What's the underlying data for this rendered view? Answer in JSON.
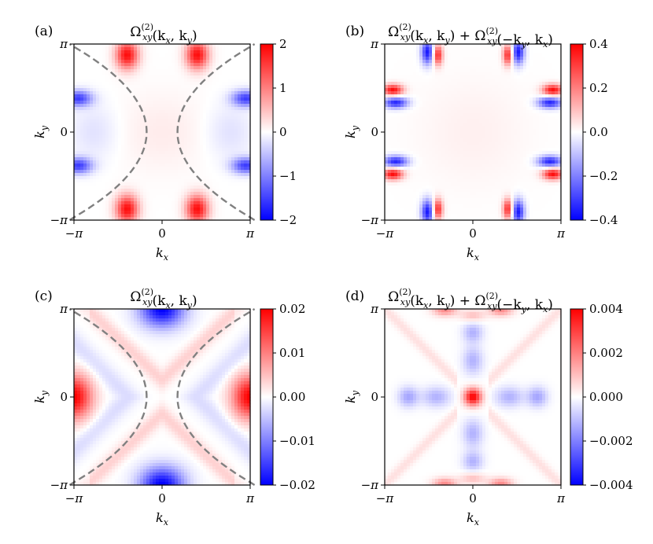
{
  "chart_data": [
    {
      "type": "heatmap",
      "panel_tag": "(a)",
      "title": "Ω_xy^(2)(k_x, k_y)",
      "title_parts": {
        "symbol": "Ω",
        "sup": "(2)",
        "sub": "xy",
        "args": "(k",
        "args_x": "x",
        "args_mid": ", k",
        "args_y": "y",
        "args_end": ")"
      },
      "xlabel": "k",
      "xlabel_sub": "x",
      "ylabel": "k",
      "ylabel_sub": "y",
      "xticks": [
        "−π",
        "0",
        "π"
      ],
      "yticks": [
        "π",
        "0",
        "−π"
      ],
      "xlim": [
        -3.14159,
        3.14159
      ],
      "ylim": [
        -3.14159,
        3.14159
      ],
      "colorbar": {
        "range": [
          -2,
          2
        ],
        "ticks": [
          2,
          1,
          0,
          -1,
          -2
        ],
        "tick_labels": [
          "2",
          "1",
          "0",
          "−1",
          "−2"
        ]
      },
      "dashed_contour": true,
      "pattern": "a"
    },
    {
      "type": "heatmap",
      "panel_tag": "(b)",
      "title": "Ω_xy^(2)(k_x, k_y) + Ω_xy^(2)(−k_y, k_x)",
      "title_parts": {
        "symbol": "Ω",
        "sup": "(2)",
        "sub": "xy",
        "args": "(k",
        "args_x": "x",
        "args_mid": ", k",
        "args_y": "y",
        "args_end": ")",
        "plus": " + ",
        "args2": "(−k",
        "args2_y": "y",
        "args2_mid": ", k",
        "args2_x": "x",
        "args2_end": ")"
      },
      "xlabel": "k",
      "xlabel_sub": "x",
      "ylabel": "k",
      "ylabel_sub": "y",
      "xticks": [
        "−π",
        "0",
        "π"
      ],
      "yticks": [
        "π",
        "0",
        "−π"
      ],
      "xlim": [
        -3.14159,
        3.14159
      ],
      "ylim": [
        -3.14159,
        3.14159
      ],
      "colorbar": {
        "range": [
          -0.4,
          0.4
        ],
        "ticks": [
          0.4,
          0.2,
          0.0,
          -0.2,
          -0.4
        ],
        "tick_labels": [
          "0.4",
          "0.2",
          "0.0",
          "−0.2",
          "−0.4"
        ]
      },
      "dashed_contour": false,
      "pattern": "b"
    },
    {
      "type": "heatmap",
      "panel_tag": "(c)",
      "title": "Ω_xy^(2)(k_x, k_y)",
      "title_parts": {
        "symbol": "Ω",
        "sup": "(2)",
        "sub": "xy",
        "args": "(k",
        "args_x": "x",
        "args_mid": ", k",
        "args_y": "y",
        "args_end": ")"
      },
      "xlabel": "k",
      "xlabel_sub": "x",
      "ylabel": "k",
      "ylabel_sub": "y",
      "xticks": [
        "−π",
        "0",
        "π"
      ],
      "yticks": [
        "π",
        "0",
        "−π"
      ],
      "xlim": [
        -3.14159,
        3.14159
      ],
      "ylim": [
        -3.14159,
        3.14159
      ],
      "colorbar": {
        "range": [
          -0.02,
          0.02
        ],
        "ticks": [
          0.02,
          0.01,
          0.0,
          -0.01,
          -0.02
        ],
        "tick_labels": [
          "0.02",
          "0.01",
          "0.00",
          "−0.01",
          "−0.02"
        ]
      },
      "dashed_contour": true,
      "pattern": "c"
    },
    {
      "type": "heatmap",
      "panel_tag": "(d)",
      "title": "Ω_xy^(2)(k_x, k_y) + Ω_xy^(2)(−k_y, k_x)",
      "title_parts": {
        "symbol": "Ω",
        "sup": "(2)",
        "sub": "xy",
        "args": "(k",
        "args_x": "x",
        "args_mid": ", k",
        "args_y": "y",
        "args_end": ")",
        "plus": " + ",
        "args2": "(−k",
        "args2_y": "y",
        "args2_mid": ", k",
        "args2_x": "x",
        "args2_end": ")"
      },
      "xlabel": "k",
      "xlabel_sub": "x",
      "ylabel": "k",
      "ylabel_sub": "y",
      "xticks": [
        "−π",
        "0",
        "π"
      ],
      "yticks": [
        "π",
        "0",
        "−π"
      ],
      "xlim": [
        -3.14159,
        3.14159
      ],
      "ylim": [
        -3.14159,
        3.14159
      ],
      "colorbar": {
        "range": [
          -0.004,
          0.004
        ],
        "ticks": [
          0.004,
          0.002,
          0.0,
          -0.002,
          -0.004
        ],
        "tick_labels": [
          "0.004",
          "0.002",
          "0.000",
          "−0.002",
          "−0.004"
        ]
      },
      "dashed_contour": false,
      "pattern": "d"
    }
  ],
  "colors": {
    "positive": "#ff0000",
    "negative": "#0000ff",
    "zero": "#ffffff",
    "contour": "#808080"
  }
}
